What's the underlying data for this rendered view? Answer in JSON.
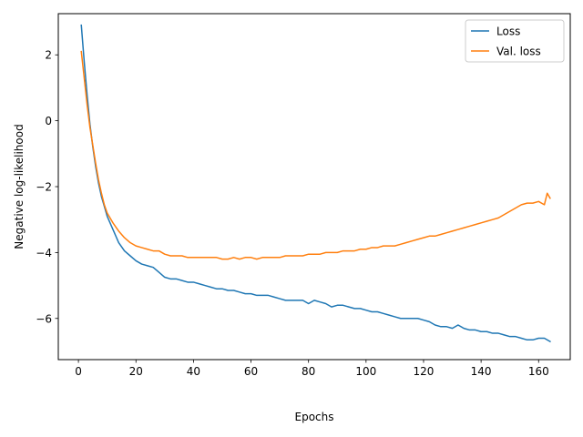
{
  "chart_data": {
    "type": "line",
    "title": "",
    "xlabel": "Epochs",
    "ylabel": "Negative log-likelihood",
    "xlim": [
      -7,
      171
    ],
    "ylim": [
      -7.25,
      3.25
    ],
    "xticks": [
      0,
      20,
      40,
      60,
      80,
      100,
      120,
      140,
      160
    ],
    "yticks": [
      -6,
      -4,
      -2,
      0,
      2
    ],
    "grid": false,
    "legend_position": "top-right",
    "series": [
      {
        "name": "Loss",
        "color": "#1f77b4",
        "x": [
          1,
          2,
          3,
          4,
          5,
          6,
          7,
          8,
          9,
          10,
          12,
          14,
          16,
          18,
          20,
          22,
          24,
          26,
          28,
          30,
          32,
          34,
          36,
          38,
          40,
          42,
          44,
          46,
          48,
          50,
          52,
          54,
          56,
          58,
          60,
          62,
          64,
          66,
          68,
          70,
          72,
          74,
          76,
          78,
          80,
          82,
          84,
          86,
          88,
          90,
          92,
          94,
          96,
          98,
          100,
          102,
          104,
          106,
          108,
          110,
          112,
          114,
          116,
          118,
          120,
          122,
          124,
          126,
          128,
          130,
          132,
          134,
          136,
          138,
          140,
          142,
          144,
          146,
          148,
          150,
          152,
          154,
          156,
          158,
          160,
          162,
          164
        ],
        "y": [
          2.9,
          1.8,
          0.8,
          -0.1,
          -0.8,
          -1.4,
          -1.9,
          -2.3,
          -2.6,
          -2.9,
          -3.3,
          -3.7,
          -3.95,
          -4.1,
          -4.25,
          -4.35,
          -4.4,
          -4.45,
          -4.6,
          -4.75,
          -4.8,
          -4.8,
          -4.85,
          -4.9,
          -4.9,
          -4.95,
          -5.0,
          -5.05,
          -5.1,
          -5.1,
          -5.15,
          -5.15,
          -5.2,
          -5.25,
          -5.25,
          -5.3,
          -5.3,
          -5.3,
          -5.35,
          -5.4,
          -5.45,
          -5.45,
          -5.45,
          -5.45,
          -5.55,
          -5.45,
          -5.5,
          -5.55,
          -5.65,
          -5.6,
          -5.6,
          -5.65,
          -5.7,
          -5.7,
          -5.75,
          -5.8,
          -5.8,
          -5.85,
          -5.9,
          -5.95,
          -6.0,
          -6.0,
          -6.0,
          -6.0,
          -6.05,
          -6.1,
          -6.2,
          -6.25,
          -6.25,
          -6.3,
          -6.2,
          -6.3,
          -6.35,
          -6.35,
          -6.4,
          -6.4,
          -6.45,
          -6.45,
          -6.5,
          -6.55,
          -6.55,
          -6.6,
          -6.65,
          -6.65,
          -6.6,
          -6.6,
          -6.7
        ]
      },
      {
        "name": "Val. loss",
        "color": "#ff7f0e",
        "x": [
          1,
          2,
          3,
          4,
          5,
          6,
          7,
          8,
          9,
          10,
          12,
          14,
          16,
          18,
          20,
          22,
          24,
          26,
          28,
          30,
          32,
          34,
          36,
          38,
          40,
          42,
          44,
          46,
          48,
          50,
          52,
          54,
          56,
          58,
          60,
          62,
          64,
          66,
          68,
          70,
          72,
          74,
          76,
          78,
          80,
          82,
          84,
          86,
          88,
          90,
          92,
          94,
          96,
          98,
          100,
          102,
          104,
          106,
          108,
          110,
          112,
          114,
          116,
          118,
          120,
          122,
          124,
          126,
          128,
          130,
          132,
          134,
          136,
          138,
          140,
          142,
          144,
          146,
          148,
          150,
          152,
          154,
          156,
          158,
          160,
          162,
          163,
          164
        ],
        "y": [
          2.1,
          1.3,
          0.5,
          -0.2,
          -0.75,
          -1.3,
          -1.8,
          -2.2,
          -2.55,
          -2.8,
          -3.1,
          -3.35,
          -3.55,
          -3.7,
          -3.8,
          -3.85,
          -3.9,
          -3.95,
          -3.95,
          -4.05,
          -4.1,
          -4.1,
          -4.1,
          -4.15,
          -4.15,
          -4.15,
          -4.15,
          -4.15,
          -4.15,
          -4.2,
          -4.2,
          -4.15,
          -4.2,
          -4.15,
          -4.15,
          -4.2,
          -4.15,
          -4.15,
          -4.15,
          -4.15,
          -4.1,
          -4.1,
          -4.1,
          -4.1,
          -4.05,
          -4.05,
          -4.05,
          -4.0,
          -4.0,
          -4.0,
          -3.95,
          -3.95,
          -3.95,
          -3.9,
          -3.9,
          -3.85,
          -3.85,
          -3.8,
          -3.8,
          -3.8,
          -3.75,
          -3.7,
          -3.65,
          -3.6,
          -3.55,
          -3.5,
          -3.5,
          -3.45,
          -3.4,
          -3.35,
          -3.3,
          -3.25,
          -3.2,
          -3.15,
          -3.1,
          -3.05,
          -3.0,
          -2.95,
          -2.85,
          -2.75,
          -2.65,
          -2.55,
          -2.5,
          -2.5,
          -2.45,
          -2.55,
          -2.2,
          -2.35
        ]
      }
    ]
  }
}
